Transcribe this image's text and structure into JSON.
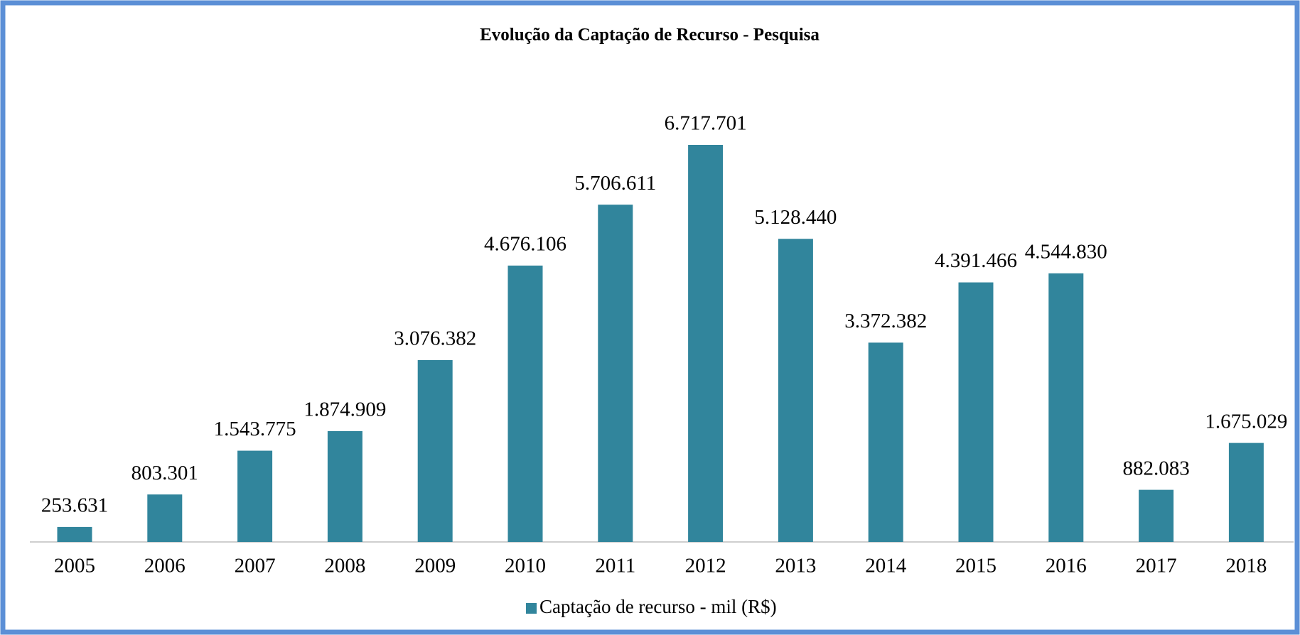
{
  "chart_data": {
    "type": "bar",
    "title": "Evolução da Captação de Recurso - Pesquisa",
    "categories": [
      "2005",
      "2006",
      "2007",
      "2008",
      "2009",
      "2010",
      "2011",
      "2012",
      "2013",
      "2014",
      "2015",
      "2016",
      "2017",
      "2018"
    ],
    "series": [
      {
        "name": "Captação de recurso - mil (R$)",
        "color": "#31859c",
        "values": [
          253631,
          803301,
          1543775,
          1874909,
          3076382,
          4676106,
          5706611,
          6717701,
          5128440,
          3372382,
          4391466,
          4544830,
          882083,
          1675029
        ],
        "value_labels": [
          "253.631",
          "803.301",
          "1.543.775",
          "1.874.909",
          "3.076.382",
          "4.676.106",
          "5.706.611",
          "6.717.701",
          "5.128.440",
          "3.372.382",
          "4.391.466",
          "4.544.830",
          "882.083",
          "1.675.029"
        ]
      }
    ],
    "legend": "bottom"
  }
}
